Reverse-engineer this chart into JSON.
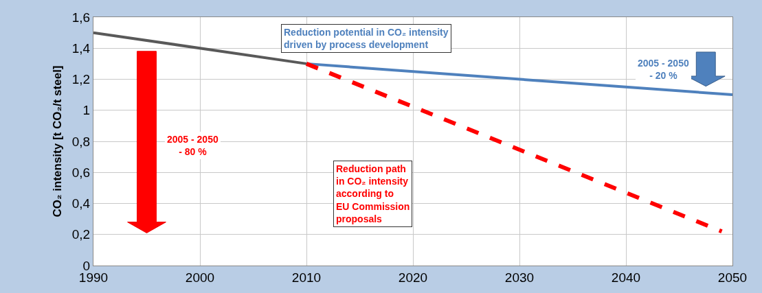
{
  "chart_data": {
    "type": "line",
    "ylabel": "CO₂ intensity [t CO₂/t steel]",
    "xlim": [
      1990,
      2050
    ],
    "xticks": [
      1990,
      2000,
      2010,
      2020,
      2030,
      2040,
      2050
    ],
    "ylim": [
      0,
      1.6
    ],
    "yticks": [
      0,
      {
        "value": 0.2,
        "label": "0,2"
      },
      {
        "value": 0.4,
        "label": "0,4"
      },
      {
        "value": 0.6,
        "label": "0,6"
      },
      {
        "value": 0.8,
        "label": "0,8"
      },
      1,
      {
        "value": 1.2,
        "label": "1,2"
      },
      {
        "value": 1.4,
        "label": "1,4"
      },
      {
        "value": 1.6,
        "label": "1,6"
      }
    ],
    "grid": true,
    "marker": "none",
    "series": [
      {
        "color": "#595959",
        "x": [
          1990,
          2010
        ],
        "values": [
          1.5,
          1.3
        ],
        "line_style": "solid"
      },
      {
        "color": "#4f81bd",
        "x": [
          2010,
          2050
        ],
        "values": [
          1.3,
          1.1
        ],
        "line_style": "solid"
      },
      {
        "color": "#ff0000",
        "x": [
          2010,
          2049
        ],
        "values": [
          1.3,
          0.22
        ],
        "line_style": "dashed"
      }
    ],
    "annotations": [
      "Reduction potential in CO₂ intensity\ndriven by process development",
      "2005 - 2050\n- 20 %",
      "2005 - 2050\n- 80 %",
      "Reduction path\nin CO₂ intensity\naccording to\nEU Commission\nproposals"
    ]
  }
}
